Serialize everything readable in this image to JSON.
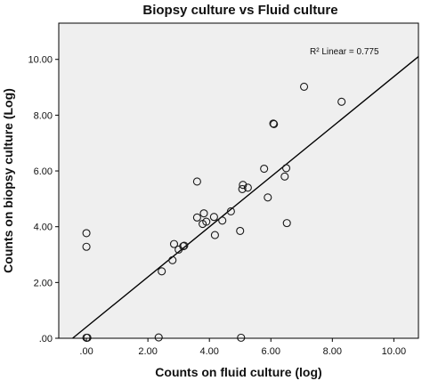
{
  "chart_data": {
    "type": "scatter",
    "title": "Biopsy culture vs Fluid culture",
    "xlabel": "Counts on fluid culture (log)",
    "ylabel": "Counts on biopsy culture (Log)",
    "xlim": [
      -0.9,
      10.8
    ],
    "ylim": [
      0,
      11.3
    ],
    "x_ticks": [
      0,
      2,
      4,
      6,
      8,
      10
    ],
    "x_tick_labels": [
      ".00",
      "2.00",
      "4.00",
      "6.00",
      "8.00",
      "10.00"
    ],
    "y_ticks": [
      0,
      2,
      4,
      6,
      8,
      10
    ],
    "y_tick_labels": [
      ".00",
      "2.00",
      "4.00",
      "6.00",
      "8.00",
      "10.00"
    ],
    "grid": false,
    "plot_background": "#efefef",
    "marker": "open-circle",
    "points": [
      {
        "x": 0.0,
        "y": 3.77
      },
      {
        "x": 0.0,
        "y": 3.28
      },
      {
        "x": 0.0,
        "y": 0.02
      },
      {
        "x": 0.03,
        "y": 0.02
      },
      {
        "x": 2.35,
        "y": 0.03
      },
      {
        "x": 5.03,
        "y": 0.02
      },
      {
        "x": 2.45,
        "y": 2.4
      },
      {
        "x": 2.8,
        "y": 2.8
      },
      {
        "x": 2.85,
        "y": 3.38
      },
      {
        "x": 3.0,
        "y": 3.18
      },
      {
        "x": 3.15,
        "y": 3.3
      },
      {
        "x": 3.18,
        "y": 3.32
      },
      {
        "x": 3.6,
        "y": 4.33
      },
      {
        "x": 3.6,
        "y": 5.62
      },
      {
        "x": 3.78,
        "y": 4.1
      },
      {
        "x": 3.82,
        "y": 4.48
      },
      {
        "x": 3.9,
        "y": 4.18
      },
      {
        "x": 4.15,
        "y": 4.35
      },
      {
        "x": 4.18,
        "y": 3.7
      },
      {
        "x": 4.42,
        "y": 4.22
      },
      {
        "x": 4.7,
        "y": 4.55
      },
      {
        "x": 5.0,
        "y": 3.85
      },
      {
        "x": 5.07,
        "y": 5.35
      },
      {
        "x": 5.09,
        "y": 5.5
      },
      {
        "x": 5.25,
        "y": 5.4
      },
      {
        "x": 5.78,
        "y": 6.08
      },
      {
        "x": 5.9,
        "y": 5.05
      },
      {
        "x": 6.08,
        "y": 7.7
      },
      {
        "x": 6.1,
        "y": 7.68
      },
      {
        "x": 6.45,
        "y": 5.8
      },
      {
        "x": 6.5,
        "y": 6.1
      },
      {
        "x": 6.52,
        "y": 4.13
      },
      {
        "x": 7.08,
        "y": 9.02
      },
      {
        "x": 8.3,
        "y": 8.48
      }
    ],
    "fit_line": {
      "type": "linear",
      "label": "R² Linear = 0.775",
      "from": [
        -0.45,
        0
      ],
      "to": [
        10.8,
        10.1
      ]
    }
  },
  "colors": {
    "plot_background": "#efefef",
    "marker_stroke": "#1a1a1a",
    "line": "#000000",
    "axes": "#000000"
  }
}
